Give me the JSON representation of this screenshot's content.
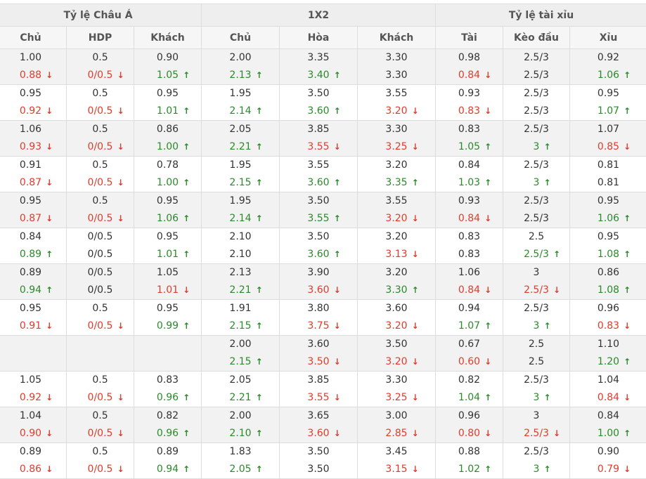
{
  "header": {
    "groups": [
      "Tỷ lệ Châu Á",
      "1X2",
      "Tỷ lệ tài xỉu"
    ],
    "columns": [
      "Chủ",
      "HDP",
      "Khách",
      "Chủ",
      "Hòa",
      "Khách",
      "Tài",
      "Kèo đầu",
      "Xỉu"
    ]
  },
  "colors": {
    "up": "#2a8a2a",
    "down": "#e23b2b",
    "neutral": "#333333"
  },
  "rows": [
    {
      "cells": [
        {
          "open": "1.00",
          "cur": "0.88",
          "dir": "down"
        },
        {
          "open": "0.5",
          "cur": "0/0.5",
          "dir": "down"
        },
        {
          "open": "0.90",
          "cur": "1.05",
          "dir": "up"
        },
        {
          "open": "2.00",
          "cur": "2.13",
          "dir": "up"
        },
        {
          "open": "3.35",
          "cur": "3.40",
          "dir": "up"
        },
        {
          "open": "3.30",
          "cur": "3.30",
          "dir": "none"
        },
        {
          "open": "0.98",
          "cur": "0.84",
          "dir": "down"
        },
        {
          "open": "2.5/3",
          "cur": "2.5/3",
          "dir": "none"
        },
        {
          "open": "0.92",
          "cur": "1.06",
          "dir": "up"
        }
      ]
    },
    {
      "cells": [
        {
          "open": "0.95",
          "cur": "0.92",
          "dir": "down"
        },
        {
          "open": "0.5",
          "cur": "0/0.5",
          "dir": "down"
        },
        {
          "open": "0.95",
          "cur": "1.01",
          "dir": "up"
        },
        {
          "open": "1.95",
          "cur": "2.14",
          "dir": "up"
        },
        {
          "open": "3.50",
          "cur": "3.60",
          "dir": "up"
        },
        {
          "open": "3.55",
          "cur": "3.20",
          "dir": "down"
        },
        {
          "open": "0.93",
          "cur": "0.83",
          "dir": "down"
        },
        {
          "open": "2.5/3",
          "cur": "2.5/3",
          "dir": "none"
        },
        {
          "open": "0.95",
          "cur": "1.07",
          "dir": "up"
        }
      ]
    },
    {
      "cells": [
        {
          "open": "1.06",
          "cur": "0.93",
          "dir": "down"
        },
        {
          "open": "0.5",
          "cur": "0/0.5",
          "dir": "down"
        },
        {
          "open": "0.86",
          "cur": "1.00",
          "dir": "up"
        },
        {
          "open": "2.05",
          "cur": "2.21",
          "dir": "up"
        },
        {
          "open": "3.85",
          "cur": "3.55",
          "dir": "down"
        },
        {
          "open": "3.30",
          "cur": "3.25",
          "dir": "down"
        },
        {
          "open": "0.83",
          "cur": "1.05",
          "dir": "up"
        },
        {
          "open": "2.5/3",
          "cur": "3",
          "dir": "up"
        },
        {
          "open": "1.07",
          "cur": "0.85",
          "dir": "down"
        }
      ]
    },
    {
      "cells": [
        {
          "open": "0.91",
          "cur": "0.87",
          "dir": "down"
        },
        {
          "open": "0.5",
          "cur": "0/0.5",
          "dir": "down"
        },
        {
          "open": "0.78",
          "cur": "1.00",
          "dir": "up"
        },
        {
          "open": "1.95",
          "cur": "2.15",
          "dir": "up"
        },
        {
          "open": "3.55",
          "cur": "3.60",
          "dir": "up"
        },
        {
          "open": "3.20",
          "cur": "3.35",
          "dir": "up"
        },
        {
          "open": "0.84",
          "cur": "1.03",
          "dir": "up"
        },
        {
          "open": "2.5/3",
          "cur": "3",
          "dir": "up"
        },
        {
          "open": "0.81",
          "cur": "0.81",
          "dir": "none"
        }
      ]
    },
    {
      "cells": [
        {
          "open": "0.95",
          "cur": "0.87",
          "dir": "down"
        },
        {
          "open": "0.5",
          "cur": "0/0.5",
          "dir": "down"
        },
        {
          "open": "0.95",
          "cur": "1.06",
          "dir": "up"
        },
        {
          "open": "1.95",
          "cur": "2.14",
          "dir": "up"
        },
        {
          "open": "3.50",
          "cur": "3.55",
          "dir": "up"
        },
        {
          "open": "3.55",
          "cur": "3.20",
          "dir": "down"
        },
        {
          "open": "0.93",
          "cur": "0.84",
          "dir": "down"
        },
        {
          "open": "2.5/3",
          "cur": "2.5/3",
          "dir": "none"
        },
        {
          "open": "0.95",
          "cur": "1.06",
          "dir": "up"
        }
      ]
    },
    {
      "cells": [
        {
          "open": "0.84",
          "cur": "0.89",
          "dir": "up"
        },
        {
          "open": "0/0.5",
          "cur": "0/0.5",
          "dir": "none"
        },
        {
          "open": "0.95",
          "cur": "1.01",
          "dir": "up"
        },
        {
          "open": "2.10",
          "cur": "2.10",
          "dir": "none"
        },
        {
          "open": "3.50",
          "cur": "3.60",
          "dir": "up"
        },
        {
          "open": "3.20",
          "cur": "3.13",
          "dir": "down"
        },
        {
          "open": "0.83",
          "cur": "0.83",
          "dir": "none"
        },
        {
          "open": "2.5",
          "cur": "2.5/3",
          "dir": "up"
        },
        {
          "open": "0.95",
          "cur": "1.08",
          "dir": "up"
        }
      ]
    },
    {
      "cells": [
        {
          "open": "0.89",
          "cur": "0.94",
          "dir": "up"
        },
        {
          "open": "0/0.5",
          "cur": "0/0.5",
          "dir": "none"
        },
        {
          "open": "1.05",
          "cur": "1.01",
          "dir": "down"
        },
        {
          "open": "2.13",
          "cur": "2.21",
          "dir": "up"
        },
        {
          "open": "3.90",
          "cur": "3.60",
          "dir": "down"
        },
        {
          "open": "3.20",
          "cur": "3.30",
          "dir": "up"
        },
        {
          "open": "1.06",
          "cur": "0.84",
          "dir": "down"
        },
        {
          "open": "3",
          "cur": "2.5/3",
          "dir": "down"
        },
        {
          "open": "0.86",
          "cur": "1.08",
          "dir": "up"
        }
      ]
    },
    {
      "cells": [
        {
          "open": "0.95",
          "cur": "0.91",
          "dir": "down"
        },
        {
          "open": "0.5",
          "cur": "0/0.5",
          "dir": "down"
        },
        {
          "open": "0.95",
          "cur": "0.99",
          "dir": "up"
        },
        {
          "open": "1.91",
          "cur": "2.15",
          "dir": "up"
        },
        {
          "open": "3.80",
          "cur": "3.75",
          "dir": "down"
        },
        {
          "open": "3.60",
          "cur": "3.20",
          "dir": "down"
        },
        {
          "open": "0.94",
          "cur": "1.07",
          "dir": "up"
        },
        {
          "open": "2.5/3",
          "cur": "3",
          "dir": "up"
        },
        {
          "open": "0.96",
          "cur": "0.83",
          "dir": "down"
        }
      ]
    },
    {
      "cells": [
        {
          "open": "",
          "cur": "",
          "dir": "none"
        },
        {
          "open": "",
          "cur": "",
          "dir": "none"
        },
        {
          "open": "",
          "cur": "",
          "dir": "none"
        },
        {
          "open": "2.00",
          "cur": "2.15",
          "dir": "up"
        },
        {
          "open": "3.60",
          "cur": "3.50",
          "dir": "down"
        },
        {
          "open": "3.50",
          "cur": "3.20",
          "dir": "down"
        },
        {
          "open": "0.67",
          "cur": "0.60",
          "dir": "down"
        },
        {
          "open": "2.5",
          "cur": "2.5",
          "dir": "none"
        },
        {
          "open": "1.10",
          "cur": "1.20",
          "dir": "up"
        }
      ]
    },
    {
      "cells": [
        {
          "open": "1.05",
          "cur": "0.92",
          "dir": "down"
        },
        {
          "open": "0.5",
          "cur": "0/0.5",
          "dir": "down"
        },
        {
          "open": "0.83",
          "cur": "0.96",
          "dir": "up"
        },
        {
          "open": "2.05",
          "cur": "2.21",
          "dir": "up"
        },
        {
          "open": "3.85",
          "cur": "3.55",
          "dir": "down"
        },
        {
          "open": "3.30",
          "cur": "3.25",
          "dir": "down"
        },
        {
          "open": "0.82",
          "cur": "1.04",
          "dir": "up"
        },
        {
          "open": "2.5/3",
          "cur": "3",
          "dir": "up"
        },
        {
          "open": "1.04",
          "cur": "0.84",
          "dir": "down"
        }
      ]
    },
    {
      "cells": [
        {
          "open": "1.04",
          "cur": "0.90",
          "dir": "down"
        },
        {
          "open": "0.5",
          "cur": "0/0.5",
          "dir": "down"
        },
        {
          "open": "0.82",
          "cur": "0.96",
          "dir": "up"
        },
        {
          "open": "2.00",
          "cur": "2.10",
          "dir": "up"
        },
        {
          "open": "3.65",
          "cur": "3.60",
          "dir": "down"
        },
        {
          "open": "3.00",
          "cur": "2.85",
          "dir": "down"
        },
        {
          "open": "0.96",
          "cur": "0.80",
          "dir": "down"
        },
        {
          "open": "3",
          "cur": "2.5/3",
          "dir": "down"
        },
        {
          "open": "0.84",
          "cur": "1.00",
          "dir": "up"
        }
      ]
    },
    {
      "cells": [
        {
          "open": "0.89",
          "cur": "0.86",
          "dir": "down"
        },
        {
          "open": "0.5",
          "cur": "0/0.5",
          "dir": "down"
        },
        {
          "open": "0.89",
          "cur": "0.94",
          "dir": "up"
        },
        {
          "open": "1.83",
          "cur": "2.05",
          "dir": "up"
        },
        {
          "open": "3.50",
          "cur": "3.50",
          "dir": "none"
        },
        {
          "open": "3.45",
          "cur": "3.15",
          "dir": "down"
        },
        {
          "open": "0.88",
          "cur": "1.02",
          "dir": "up"
        },
        {
          "open": "2.5/3",
          "cur": "3",
          "dir": "up"
        },
        {
          "open": "0.90",
          "cur": "0.79",
          "dir": "down"
        }
      ]
    }
  ]
}
